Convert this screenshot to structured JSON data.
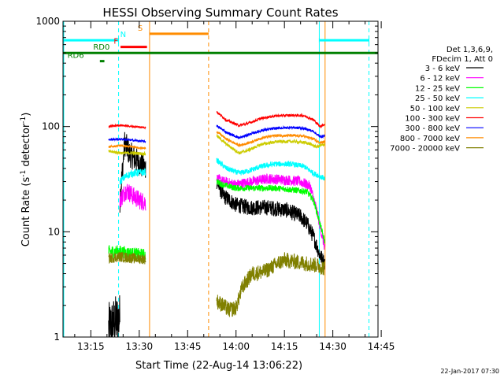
{
  "chart_data": {
    "type": "line",
    "title": "HESSI Observing Summary Count Rates",
    "xlabel": "Start Time (22-Aug-14 13:06:22)",
    "ylabel_pre": "Count Rate (s",
    "ylabel_sup1": "-1",
    "ylabel_mid": " detector",
    "ylabel_sup2": "-1",
    "ylabel_post": ")",
    "y_scale": "log",
    "ylim": [
      1,
      1000
    ],
    "xlim_min": [
      6.37,
      104
    ],
    "x_ticks": [
      {
        "m": 15,
        "label": "13:15"
      },
      {
        "m": 30,
        "label": "13:30"
      },
      {
        "m": 45,
        "label": "13:45"
      },
      {
        "m": 60,
        "label": "14:00"
      },
      {
        "m": 75,
        "label": "14:15"
      },
      {
        "m": 90,
        "label": "14:30"
      },
      {
        "m": 105,
        "label": "14:45"
      }
    ],
    "y_ticks": [
      {
        "v": 1,
        "label": "1"
      },
      {
        "v": 10,
        "label": "10"
      },
      {
        "v": 100,
        "label": "100"
      },
      {
        "v": 1000,
        "label": "1000"
      }
    ],
    "legend_header": [
      "Det 1,3,6,9,",
      "FDecim 1, Att 0"
    ],
    "series": [
      {
        "name": "3 - 6 keV",
        "color": "#000000",
        "segments": [
          {
            "x0": 20.5,
            "x1": 24.0,
            "noise": 0.5,
            "pts": [
              [
                20.5,
                1.2
              ],
              [
                22.5,
                1.4
              ],
              [
                24.0,
                1.5
              ]
            ]
          },
          {
            "x0": 24.0,
            "x1": 32.0,
            "noise": 0.25,
            "pts": [
              [
                24.0,
                20
              ],
              [
                25.5,
                70
              ],
              [
                27,
                55
              ],
              [
                29,
                48
              ],
              [
                31,
                42
              ],
              [
                32,
                40
              ]
            ]
          },
          {
            "x0": 54.0,
            "x1": 87.5,
            "noise": 0.15,
            "pts": [
              [
                54,
                30
              ],
              [
                56,
                22
              ],
              [
                58,
                20
              ],
              [
                60,
                18
              ],
              [
                64,
                17
              ],
              [
                70,
                17
              ],
              [
                76,
                16
              ],
              [
                80,
                14
              ],
              [
                82,
                12
              ],
              [
                84,
                9
              ],
              [
                86,
                6
              ],
              [
                87.5,
                5
              ]
            ]
          }
        ]
      },
      {
        "name": "6 - 12 keV",
        "color": "#ff00ff",
        "segments": [
          {
            "x0": 24.0,
            "x1": 32.0,
            "noise": 0.18,
            "pts": [
              [
                24,
                20
              ],
              [
                26,
                25
              ],
              [
                28,
                22
              ],
              [
                30,
                20
              ],
              [
                32,
                19
              ]
            ]
          },
          {
            "x0": 54.0,
            "x1": 87.5,
            "noise": 0.1,
            "pts": [
              [
                54,
                32
              ],
              [
                56,
                30
              ],
              [
                60,
                28
              ],
              [
                65,
                30
              ],
              [
                70,
                32
              ],
              [
                76,
                31
              ],
              [
                80,
                30
              ],
              [
                83,
                27
              ],
              [
                85,
                16
              ],
              [
                87.5,
                7
              ]
            ]
          }
        ]
      },
      {
        "name": "12 - 25 keV",
        "color": "#00ff00",
        "segments": [
          {
            "x0": 20.5,
            "x1": 32.0,
            "noise": 0.12,
            "pts": [
              [
                20.5,
                6.5
              ],
              [
                24,
                6.5
              ],
              [
                28,
                6.2
              ],
              [
                32,
                6.0
              ]
            ]
          },
          {
            "x0": 54.0,
            "x1": 87.5,
            "noise": 0.06,
            "pts": [
              [
                54,
                30
              ],
              [
                56,
                28
              ],
              [
                60,
                26
              ],
              [
                66,
                26
              ],
              [
                72,
                26
              ],
              [
                78,
                25
              ],
              [
                82,
                24
              ],
              [
                84,
                20
              ],
              [
                86,
                12
              ],
              [
                87.5,
                8
              ]
            ]
          }
        ]
      },
      {
        "name": "25 - 50 keV",
        "color": "#00ffff",
        "segments": [
          {
            "x0": 24.0,
            "x1": 32.0,
            "noise": 0.07,
            "pts": [
              [
                24,
                30
              ],
              [
                26,
                34
              ],
              [
                28,
                36
              ],
              [
                32,
                37
              ]
            ]
          },
          {
            "x0": 54.0,
            "x1": 87.5,
            "noise": 0.05,
            "pts": [
              [
                54,
                48
              ],
              [
                57,
                40
              ],
              [
                61,
                36
              ],
              [
                64,
                38
              ],
              [
                68,
                42
              ],
              [
                72,
                44
              ],
              [
                77,
                44
              ],
              [
                81,
                42
              ],
              [
                84,
                36
              ],
              [
                87.5,
                32
              ]
            ]
          }
        ]
      },
      {
        "name": "50 - 100 keV",
        "color": "#cccc00",
        "segments": [
          {
            "x0": 20.5,
            "x1": 32.0,
            "noise": 0.03,
            "pts": [
              [
                20.5,
                58
              ],
              [
                25,
                56
              ],
              [
                28,
                56
              ],
              [
                32,
                55
              ]
            ]
          },
          {
            "x0": 54.0,
            "x1": 87.5,
            "noise": 0.03,
            "pts": [
              [
                54,
                82
              ],
              [
                57,
                68
              ],
              [
                61,
                56
              ],
              [
                64,
                60
              ],
              [
                68,
                68
              ],
              [
                73,
                72
              ],
              [
                78,
                72
              ],
              [
                82,
                70
              ],
              [
                85,
                64
              ],
              [
                87.5,
                68
              ]
            ]
          }
        ]
      },
      {
        "name": "100 - 300 keV",
        "color": "#ff0000",
        "segments": [
          {
            "x0": 20.5,
            "x1": 32.0,
            "noise": 0.02,
            "pts": [
              [
                20.5,
                100
              ],
              [
                24,
                103
              ],
              [
                28,
                100
              ],
              [
                32,
                98
              ]
            ]
          },
          {
            "x0": 54.0,
            "x1": 87.5,
            "noise": 0.025,
            "pts": [
              [
                54,
                138
              ],
              [
                57,
                115
              ],
              [
                61,
                102
              ],
              [
                64,
                108
              ],
              [
                68,
                120
              ],
              [
                72,
                126
              ],
              [
                77,
                128
              ],
              [
                81,
                127
              ],
              [
                84,
                116
              ],
              [
                86,
                100
              ],
              [
                87.5,
                105
              ]
            ]
          }
        ]
      },
      {
        "name": "300 - 800 keV",
        "color": "#0000ff",
        "segments": [
          {
            "x0": 20.5,
            "x1": 32.0,
            "noise": 0.02,
            "pts": [
              [
                20.5,
                75
              ],
              [
                24,
                76
              ],
              [
                28,
                74
              ],
              [
                32,
                72
              ]
            ]
          },
          {
            "x0": 54.0,
            "x1": 87.5,
            "noise": 0.025,
            "pts": [
              [
                54,
                102
              ],
              [
                57,
                88
              ],
              [
                61,
                78
              ],
              [
                64,
                84
              ],
              [
                68,
                92
              ],
              [
                72,
                96
              ],
              [
                77,
                98
              ],
              [
                81,
                96
              ],
              [
                84,
                90
              ],
              [
                86,
                80
              ],
              [
                87.5,
                82
              ]
            ]
          }
        ]
      },
      {
        "name": "800 - 7000 keV",
        "color": "#ff8c00",
        "segments": [
          {
            "x0": 20.5,
            "x1": 32.0,
            "noise": 0.02,
            "pts": [
              [
                20.5,
                64
              ],
              [
                24,
                66
              ],
              [
                28,
                64
              ],
              [
                32,
                62
              ]
            ]
          },
          {
            "x0": 54.0,
            "x1": 87.5,
            "noise": 0.025,
            "pts": [
              [
                54,
                90
              ],
              [
                57,
                76
              ],
              [
                61,
                66
              ],
              [
                64,
                70
              ],
              [
                68,
                78
              ],
              [
                72,
                82
              ],
              [
                77,
                82
              ],
              [
                81,
                81
              ],
              [
                84,
                76
              ],
              [
                86,
                70
              ],
              [
                87.5,
                72
              ]
            ]
          }
        ]
      },
      {
        "name": "7000 - 20000 keV",
        "color": "#808000",
        "segments": [
          {
            "x0": 20.5,
            "x1": 32.0,
            "noise": 0.1,
            "pts": [
              [
                20.5,
                5.6
              ],
              [
                24,
                5.8
              ],
              [
                28,
                5.6
              ],
              [
                32,
                5.5
              ]
            ]
          },
          {
            "x0": 54.0,
            "x1": 87.5,
            "noise": 0.15,
            "pts": [
              [
                54,
                2.2
              ],
              [
                58,
                1.8
              ],
              [
                60,
                1.9
              ],
              [
                62,
                3.0
              ],
              [
                65,
                4.0
              ],
              [
                69,
                4.2
              ],
              [
                72,
                4.8
              ],
              [
                75,
                5.4
              ],
              [
                78,
                5.2
              ],
              [
                82,
                5.0
              ],
              [
                85,
                4.8
              ],
              [
                87.5,
                4.5
              ]
            ]
          }
        ]
      }
    ],
    "vertical_lines": [
      {
        "m": 6.6,
        "color": "#00ffff",
        "dash": false
      },
      {
        "m": 23.6,
        "color": "#00ffff",
        "dash": true
      },
      {
        "m": 33.2,
        "color": "#ff8c00",
        "dash": false
      },
      {
        "m": 51.5,
        "color": "#ff8c00",
        "dash": true
      },
      {
        "m": 85.8,
        "color": "#00ffff",
        "dash": false
      },
      {
        "m": 87.6,
        "color": "#ff8c00",
        "dash": false
      },
      {
        "m": 101.2,
        "color": "#00ffff",
        "dash": true
      }
    ],
    "flag_bars": [
      {
        "label": "N",
        "color": "#00ffff",
        "segments": [
          [
            6.37,
            23.6
          ],
          [
            85.8,
            101.2
          ]
        ],
        "y": 660,
        "label_at": 25
      },
      {
        "label": "F",
        "color": "#ff0000",
        "segments": [
          [
            24.2,
            32.4
          ]
        ],
        "y": 570,
        "label_at": 22.8
      },
      {
        "label": "S",
        "color": "#ff8c00",
        "segments": [
          [
            33.2,
            51.5
          ]
        ],
        "y": 760,
        "label_at": 30.3
      },
      {
        "label": "RD0",
        "color": "#008000",
        "segments": [
          [
            6.37,
            104
          ]
        ],
        "y": 500,
        "label_at": 18.3
      },
      {
        "label": "RD6",
        "color": "#008000",
        "segments": [
          [
            17.8,
            19.2
          ]
        ],
        "y": 418,
        "label_at": 10.3
      }
    ]
  },
  "timestamp": "22-Jan-2017 07:30"
}
